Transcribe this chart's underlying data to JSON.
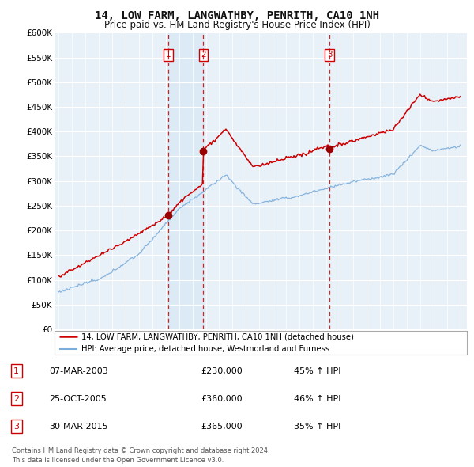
{
  "title": "14, LOW FARM, LANGWATHBY, PENRITH, CA10 1NH",
  "subtitle": "Price paid vs. HM Land Registry's House Price Index (HPI)",
  "legend_line1": "14, LOW FARM, LANGWATHBY, PENRITH, CA10 1NH (detached house)",
  "legend_line2": "HPI: Average price, detached house, Westmorland and Furness",
  "footer1": "Contains HM Land Registry data © Crown copyright and database right 2024.",
  "footer2": "This data is licensed under the Open Government Licence v3.0.",
  "transactions": [
    {
      "num": 1,
      "date": "07-MAR-2003",
      "price": "£230,000",
      "hpi": "45% ↑ HPI",
      "year": 2003.18,
      "price_val": 230000
    },
    {
      "num": 2,
      "date": "25-OCT-2005",
      "price": "£360,000",
      "hpi": "46% ↑ HPI",
      "year": 2005.82,
      "price_val": 360000
    },
    {
      "num": 3,
      "date": "30-MAR-2015",
      "price": "£365,000",
      "hpi": "35% ↑ HPI",
      "year": 2015.25,
      "price_val": 365000
    }
  ],
  "property_color": "#cc0000",
  "hpi_color": "#7aaddc",
  "vline_color": "#cc0000",
  "dot_color": "#990000",
  "shade_color": "#dce8f5",
  "ylim": [
    0,
    600000
  ],
  "yticks": [
    0,
    50000,
    100000,
    150000,
    200000,
    250000,
    300000,
    350000,
    400000,
    450000,
    500000,
    550000,
    600000
  ],
  "xlim_start": 1994.7,
  "xlim_end": 2025.5,
  "background_plot": "#e8f0f8",
  "background_fig": "#ffffff",
  "grid_color": "#ffffff"
}
